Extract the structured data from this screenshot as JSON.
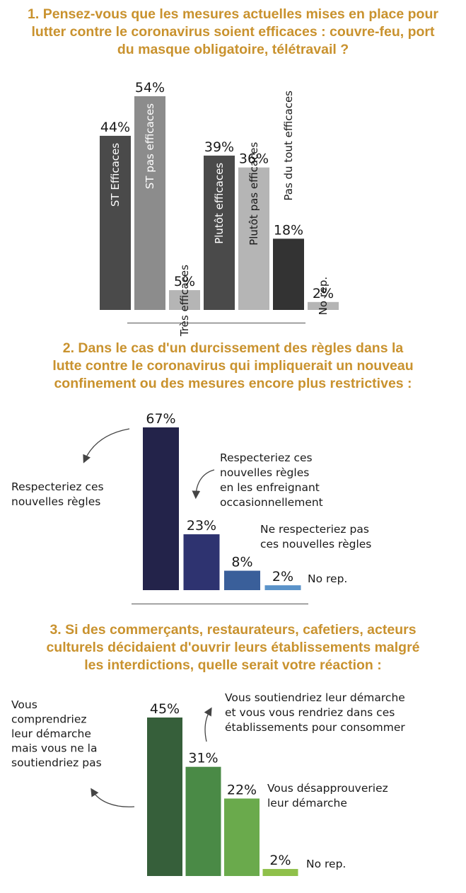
{
  "q1": {
    "title_lines": [
      "1. Pensez-vous que les mesures actuelles mises en place pour",
      "lutter contre le coronavirus soient efficaces : couvre-feu, port",
      "du masque obligatoire, télétravail ?"
    ]
  },
  "q2": {
    "title_lines": [
      "2. Dans le cas d'un durcissement des règles dans la",
      "lutte contre le coronavirus qui impliquerait un nouveau",
      "confinement ou des mesures encore plus restrictives :"
    ]
  },
  "q3": {
    "title_lines": [
      "3. Si des commerçants, restaurateurs, cafetiers, acteurs",
      "culturels décidaient d'ouvrir leurs établissements malgré",
      "les interdictions, quelle serait votre réaction :"
    ]
  },
  "chart_data": [
    {
      "type": "bar",
      "categories": [
        "ST Efficaces",
        "ST pas efficaces",
        "Très efficaces",
        "Plutôt efficaces",
        "Plutôt pas efficaces",
        "Pas du tout efficaces",
        "No rep."
      ],
      "values": [
        44,
        54,
        5,
        39,
        36,
        18,
        2
      ],
      "value_labels": [
        "44%",
        "54%",
        "5%",
        "39%",
        "36%",
        "18%",
        "2%"
      ],
      "colors": [
        "#4a4a4a",
        "#8c8c8c",
        "#b5b5b5",
        "#4a4a4a",
        "#b5b5b5",
        "#333333",
        "#b5b5b5"
      ],
      "label_colors": [
        "#ffffff",
        "#ffffff",
        "#1a1a1a",
        "#ffffff",
        "#1a1a1a",
        "#1a1a1a",
        "#1a1a1a"
      ],
      "ylim": [
        0,
        60
      ]
    },
    {
      "type": "bar",
      "categories": [
        "Respecteriez ces nouvelles règles",
        "Respecteriez ces nouvelles règles en les enfreignant occasionnellement",
        "Ne respecteriez pas ces nouvelles règles",
        "No rep."
      ],
      "values": [
        67,
        23,
        8,
        2
      ],
      "value_labels": [
        "67%",
        "23%",
        "8%",
        "2%"
      ],
      "colors": [
        "#23234a",
        "#2e3370",
        "#3a5f9a",
        "#5b93c9"
      ],
      "ylim": [
        0,
        70
      ]
    },
    {
      "type": "bar",
      "categories": [
        "Vous comprendriez leur démarche mais vous ne la soutiendriez pas",
        "Vous soutiendriez leur démarche et vous vous rendriez dans ces établissements pour consommer",
        "Vous désapprouveriez leur démarche",
        "No rep."
      ],
      "values": [
        45,
        31,
        22,
        2
      ],
      "value_labels": [
        "45%",
        "31%",
        "22%",
        "2%"
      ],
      "colors": [
        "#365f3a",
        "#4a8a46",
        "#6aaa4c",
        "#8fc04a"
      ],
      "ylim": [
        0,
        50
      ]
    }
  ],
  "annotations": {
    "q2": {
      "left": [
        "Respecteriez ces",
        "nouvelles règles"
      ],
      "mid": [
        "Respecteriez ces",
        "nouvelles règles",
        "en les enfreignant",
        "occasionnellement"
      ],
      "right": [
        "Ne respecteriez pas",
        "ces nouvelles règles"
      ],
      "norep": "No rep."
    },
    "q3": {
      "left": [
        "Vous",
        "comprendriez",
        "leur démarche",
        "mais vous ne la",
        "soutiendriez pas"
      ],
      "top": [
        "Vous soutiendriez leur démarche",
        "et vous vous rendriez dans ces",
        "établissements pour consommer"
      ],
      "right": [
        "Vous désapprouveriez",
        "leur démarche"
      ],
      "norep": "No rep."
    }
  }
}
